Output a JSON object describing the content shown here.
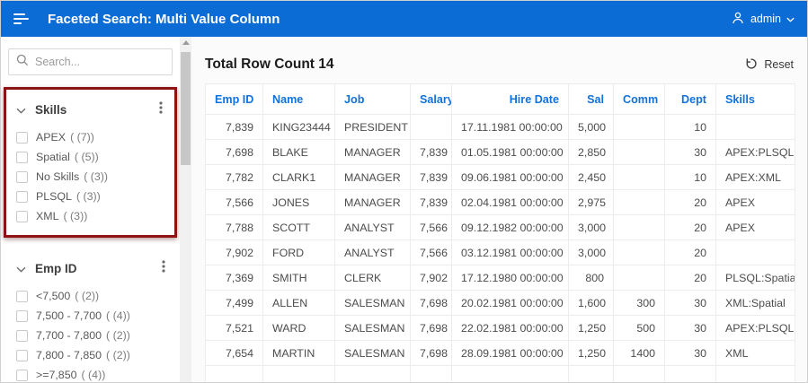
{
  "header": {
    "title": "Faceted Search: Multi Value Column",
    "user_label": "admin"
  },
  "icons": {
    "nav_menu": "hamburger",
    "search": "magnifier",
    "user": "person",
    "user_caret": "chevron-down",
    "facet_collapse": "chevron-down",
    "facet_menu": "vertical-dots",
    "reset": "circular-arrow",
    "scroll_up": "triangle-up"
  },
  "colors": {
    "topbar_bg": "#0b6cd6",
    "table_header_blue": "#1272dc",
    "highlight_red": "#8e1414"
  },
  "sidebar": {
    "search_placeholder": "Search...",
    "facets": [
      {
        "title": "Skills",
        "highlighted": true,
        "items": [
          {
            "label": "APEX",
            "count": "( (7))"
          },
          {
            "label": "Spatial",
            "count": "( (5))"
          },
          {
            "label": "No Skills",
            "count": "( (3))"
          },
          {
            "label": "PLSQL",
            "count": "( (3))"
          },
          {
            "label": "XML",
            "count": "( (3))"
          }
        ]
      },
      {
        "title": "Emp ID",
        "highlighted": false,
        "items": [
          {
            "label": "<7,500",
            "count": "( (2))"
          },
          {
            "label": "7,500 - 7,700",
            "count": "( (4))"
          },
          {
            "label": "7,700 - 7,800",
            "count": "( (2))"
          },
          {
            "label": "7,800 - 7,850",
            "count": "( (2))"
          },
          {
            "label": ">=7,850",
            "count": "( (4))"
          }
        ]
      }
    ]
  },
  "main": {
    "title": "Total Row Count 14",
    "reset_label": "Reset",
    "table": {
      "columns": [
        "Emp ID",
        "Name",
        "Job",
        "Salary",
        "Hire Date",
        "Sal",
        "Comm",
        "Dept",
        "Skills"
      ],
      "rows": [
        [
          "7,839",
          "KING23444",
          "PRESIDENT",
          "",
          "17.11.1981 00:00:00",
          "5,000",
          "",
          "10",
          ""
        ],
        [
          "7,698",
          "BLAKE",
          "MANAGER",
          "7,839",
          "01.05.1981 00:00:00",
          "2,850",
          "",
          "30",
          "APEX:PLSQL"
        ],
        [
          "7,782",
          "CLARK1",
          "MANAGER",
          "7,839",
          "09.06.1981 00:00:00",
          "2,450",
          "",
          "10",
          "APEX:XML"
        ],
        [
          "7,566",
          "JONES",
          "MANAGER",
          "7,839",
          "02.04.1981 00:00:00",
          "2,975",
          "",
          "20",
          "APEX"
        ],
        [
          "7,788",
          "SCOTT",
          "ANALYST",
          "7,566",
          "09.12.1982 00:00:00",
          "3,000",
          "",
          "20",
          "APEX"
        ],
        [
          "7,902",
          "FORD",
          "ANALYST",
          "7,566",
          "03.12.1981 00:00:00",
          "3,000",
          "",
          "20",
          ""
        ],
        [
          "7,369",
          "SMITH",
          "CLERK",
          "7,902",
          "17.12.1980 00:00:00",
          "800",
          "",
          "20",
          "PLSQL:Spatial"
        ],
        [
          "7,499",
          "ALLEN",
          "SALESMAN",
          "7,698",
          "20.02.1981 00:00:00",
          "1,600",
          "300",
          "30",
          "XML:Spatial"
        ],
        [
          "7,521",
          "WARD",
          "SALESMAN",
          "7,698",
          "22.02.1981 00:00:00",
          "1,250",
          "500",
          "30",
          "APEX:PLSQL"
        ],
        [
          "7,654",
          "MARTIN",
          "SALESMAN",
          "7,698",
          "28.09.1981 00:00:00",
          "1,250",
          "1400",
          "30",
          "XML"
        ]
      ]
    }
  }
}
